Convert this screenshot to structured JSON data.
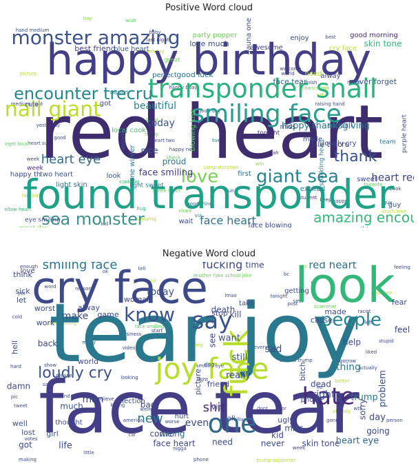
{
  "chart_data": [
    {
      "type": "wordcloud",
      "title": "Positive Word cloud",
      "words": [
        {
          "text": "red heart",
          "weight": 100,
          "color": "#3d2c6e"
        },
        {
          "text": "happy birthday",
          "weight": 78,
          "color": "#433e85"
        },
        {
          "text": "found transponder",
          "weight": 74,
          "color": "#1fa187"
        },
        {
          "text": "transponder snail",
          "weight": 46,
          "color": "#2db27d"
        },
        {
          "text": "smiling face",
          "weight": 44,
          "color": "#2a9d8f"
        },
        {
          "text": "snail giant",
          "weight": 33,
          "color": "#b8de29"
        },
        {
          "text": "monster amazing",
          "weight": 32,
          "color": "#3b528b"
        },
        {
          "text": "encounter trecru",
          "weight": 28,
          "color": "#23888e"
        },
        {
          "text": "love",
          "weight": 28,
          "color": "#7ad151"
        },
        {
          "text": "giant sea",
          "weight": 28,
          "color": "#25858e"
        },
        {
          "text": "sea monster",
          "weight": 24,
          "color": "#3e8f8b"
        },
        {
          "text": "thank",
          "weight": 22,
          "color": "#3a528b"
        },
        {
          "text": "amazing encounter",
          "weight": 21,
          "color": "#35b779"
        },
        {
          "text": "heart eye",
          "weight": 18,
          "color": "#31688e"
        },
        {
          "text": "face heart",
          "weight": 16,
          "color": "#2c728e"
        },
        {
          "text": "heart red",
          "weight": 14,
          "color": "#404688"
        },
        {
          "text": "today",
          "weight": 13,
          "color": "#3b528b"
        },
        {
          "text": "happy thanksgiving",
          "weight": 12,
          "color": "#2a788e"
        },
        {
          "text": "face smiling",
          "weight": 11,
          "color": "#443a83"
        },
        {
          "text": "good morning",
          "weight": 10,
          "color": "#482878"
        },
        {
          "text": "skin tone",
          "weight": 10,
          "color": "#35b779"
        },
        {
          "text": "party popper",
          "weight": 9,
          "color": "#6ece58"
        },
        {
          "text": "love much",
          "weight": 9,
          "color": "#3e4989"
        },
        {
          "text": "best friend",
          "weight": 9,
          "color": "#414487"
        },
        {
          "text": "good luck",
          "weight": 9,
          "color": "#2a788e"
        },
        {
          "text": "face tear",
          "weight": 9,
          "color": "#31688e"
        },
        {
          "text": "never forget",
          "weight": 9,
          "color": "#38588c"
        },
        {
          "text": "beautiful",
          "weight": 9,
          "color": "#26828e"
        },
        {
          "text": "sweet",
          "weight": 8,
          "color": "#3e4a89"
        },
        {
          "text": "sail trecru",
          "weight": 8,
          "color": "#20928c"
        },
        {
          "text": "growing heart",
          "weight": 8,
          "color": "#2d708e"
        },
        {
          "text": "face blowing",
          "weight": 8,
          "color": "#3f4788"
        },
        {
          "text": "winter isle",
          "weight": 8,
          "color": "#2c728e"
        },
        {
          "text": "snail killer killer rabbit",
          "weight": 7,
          "color": "#a0da39"
        },
        {
          "text": "great day",
          "weight": 7,
          "color": "#7ad151"
        },
        {
          "text": "eye smiling",
          "weight": 7,
          "color": "#3b528b"
        },
        {
          "text": "light skin",
          "weight": 7,
          "color": "#2f6c8e"
        },
        {
          "text": "blowing kiss",
          "weight": 7,
          "color": "#5ec962"
        },
        {
          "text": "local cook",
          "weight": 7,
          "color": "#4ac16d"
        },
        {
          "text": "set sail",
          "weight": 7,
          "color": "#31688e"
        },
        {
          "text": "loudly cry",
          "weight": 7,
          "color": "#3e4989"
        },
        {
          "text": "made",
          "weight": 7,
          "color": "#3e4989"
        },
        {
          "text": "excited",
          "weight": 7,
          "color": "#2a788e"
        },
        {
          "text": "enjoy",
          "weight": 7,
          "color": "#3e4989"
        },
        {
          "text": "awesome",
          "weight": 7,
          "color": "#414487"
        },
        {
          "text": "nice",
          "weight": 7,
          "color": "#3b528b"
        },
        {
          "text": "proud",
          "weight": 7,
          "color": "#2a788e"
        },
        {
          "text": "perfect",
          "weight": 7,
          "color": "#31688e"
        },
        {
          "text": "cute",
          "weight": 6,
          "color": "#3b528b"
        },
        {
          "text": "great",
          "weight": 6,
          "color": "#6ece58"
        },
        {
          "text": "blue heart",
          "weight": 6,
          "color": "#38588c"
        },
        {
          "text": "cry face",
          "weight": 6,
          "color": "#b5de2b"
        },
        {
          "text": "fauna one",
          "weight": 6,
          "color": "#3e4989"
        },
        {
          "text": "tonight",
          "weight": 6,
          "color": "#482878"
        },
        {
          "text": "sparkling heart",
          "weight": 6,
          "color": "#2a788e"
        },
        {
          "text": "isle trecru",
          "weight": 6,
          "color": "#433e85"
        },
        {
          "text": "two heart",
          "weight": 6,
          "color": "#3b528b"
        },
        {
          "text": "happy th",
          "weight": 6,
          "color": "#3e4989"
        },
        {
          "text": "first",
          "weight": 5,
          "color": "#31688e"
        },
        {
          "text": "wait",
          "weight": 5,
          "color": "#3e4989"
        },
        {
          "text": "got",
          "weight": 5,
          "color": "#3e4989"
        },
        {
          "text": "team",
          "weight": 5,
          "color": "#2c728e"
        },
        {
          "text": "guy",
          "weight": 5,
          "color": "#3b528b"
        },
        {
          "text": "look",
          "weight": 5,
          "color": "#3b528b"
        },
        {
          "text": "week",
          "weight": 5,
          "color": "#482878"
        },
        {
          "text": "miss",
          "weight": 5,
          "color": "#3e4989"
        },
        {
          "text": "need",
          "weight": 5,
          "color": "#b5de2b"
        },
        {
          "text": "alway",
          "weight": 5,
          "color": "#3e4989"
        },
        {
          "text": "one winter",
          "weight": 5,
          "color": "#2a788e"
        },
        {
          "text": "lovely",
          "weight": 5,
          "color": "#3b528b"
        },
        {
          "text": "light sweet",
          "weight": 5,
          "color": "#2a788e"
        },
        {
          "text": "purple heart",
          "weight": 5,
          "color": "#3e4989"
        }
      ]
    },
    {
      "type": "wordcloud",
      "title": "Negative Word cloud",
      "words": [
        {
          "text": "tear joy",
          "weight": 100,
          "color": "#2a788e"
        },
        {
          "text": "face tear",
          "weight": 84,
          "color": "#433e85"
        },
        {
          "text": "cry face",
          "weight": 62,
          "color": "#3e4989"
        },
        {
          "text": "look",
          "weight": 60,
          "color": "#35b779"
        },
        {
          "text": "joy face",
          "weight": 42,
          "color": "#b5de2b"
        },
        {
          "text": "fuck",
          "weight": 40,
          "color": "#b8de29"
        },
        {
          "text": "hate",
          "weight": 34,
          "color": "#482878"
        },
        {
          "text": "one",
          "weight": 34,
          "color": "#31688e"
        },
        {
          "text": "say",
          "weight": 30,
          "color": "#3b528b"
        },
        {
          "text": "know",
          "weight": 26,
          "color": "#3b528b"
        },
        {
          "text": "people",
          "weight": 24,
          "color": "#26828e"
        },
        {
          "text": "loudly cry",
          "weight": 20,
          "color": "#3b528b"
        },
        {
          "text": "smiling face",
          "weight": 18,
          "color": "#2a788e"
        },
        {
          "text": "fucking",
          "weight": 16,
          "color": "#3e4989"
        },
        {
          "text": "red heart",
          "weight": 16,
          "color": "#2d708e"
        },
        {
          "text": "shit",
          "weight": 16,
          "color": "#482878"
        },
        {
          "text": "new",
          "weight": 16,
          "color": "#2a788e"
        },
        {
          "text": "man",
          "weight": 15,
          "color": "#3e4989"
        },
        {
          "text": "today",
          "weight": 13,
          "color": "#3b528b"
        },
        {
          "text": "make",
          "weight": 13,
          "color": "#3e4989"
        },
        {
          "text": "death",
          "weight": 13,
          "color": "#3e4989"
        },
        {
          "text": "right",
          "weight": 13,
          "color": "#38588c"
        },
        {
          "text": "even",
          "weight": 13,
          "color": "#3e4989"
        },
        {
          "text": "sad",
          "weight": 13,
          "color": "#3e4989"
        },
        {
          "text": "see",
          "weight": 13,
          "color": "#3e4989"
        },
        {
          "text": "want",
          "weight": 12,
          "color": "#3b528b"
        },
        {
          "text": "really",
          "weight": 12,
          "color": "#3e4989"
        },
        {
          "text": "still",
          "weight": 12,
          "color": "#3b528b"
        },
        {
          "text": "time",
          "weight": 12,
          "color": "#3e4989"
        },
        {
          "text": "thing",
          "weight": 12,
          "color": "#2a788e"
        },
        {
          "text": "problem",
          "weight": 11,
          "color": "#3b528b"
        },
        {
          "text": "trump",
          "weight": 11,
          "color": "#2a788e"
        },
        {
          "text": "heart eye",
          "weight": 11,
          "color": "#31688e"
        },
        {
          "text": "face heart",
          "weight": 11,
          "color": "#3e4989"
        },
        {
          "text": "skin tone",
          "weight": 11,
          "color": "#3e4989"
        },
        {
          "text": "never",
          "weight": 11,
          "color": "#3e4989"
        },
        {
          "text": "need",
          "weight": 11,
          "color": "#3e4989"
        },
        {
          "text": "wrong",
          "weight": 11,
          "color": "#31688e"
        },
        {
          "text": "come",
          "weight": 11,
          "color": "#3e4989"
        },
        {
          "text": "life",
          "weight": 11,
          "color": "#3e4989"
        },
        {
          "text": "got",
          "weight": 11,
          "color": "#3e4989"
        },
        {
          "text": "kid",
          "weight": 11,
          "color": "#3e4989"
        },
        {
          "text": "miss",
          "weight": 11,
          "color": "#3b528b"
        },
        {
          "text": "day",
          "weight": 11,
          "color": "#3e4989"
        },
        {
          "text": "going",
          "weight": 11,
          "color": "#3e4989"
        },
        {
          "text": "sorry",
          "weight": 11,
          "color": "#3e4989"
        },
        {
          "text": "dead",
          "weight": 11,
          "color": "#3e4989"
        },
        {
          "text": "bad",
          "weight": 11,
          "color": "#3e4989"
        },
        {
          "text": "much",
          "weight": 11,
          "color": "#3b528b"
        },
        {
          "text": "damn",
          "weight": 11,
          "color": "#3e4989"
        },
        {
          "text": "lost",
          "weight": 10,
          "color": "#3b528b"
        },
        {
          "text": "girl",
          "weight": 10,
          "color": "#3b528b"
        },
        {
          "text": "well",
          "weight": 10,
          "color": "#3b528b"
        },
        {
          "text": "ugly",
          "weight": 10,
          "color": "#3e4989"
        },
        {
          "text": "via",
          "weight": 10,
          "color": "#3e4989"
        },
        {
          "text": "feel",
          "weight": 10,
          "color": "#3e4989"
        },
        {
          "text": "help",
          "weight": 10,
          "color": "#3e4989"
        },
        {
          "text": "let",
          "weight": 10,
          "color": "#3e4989"
        },
        {
          "text": "think",
          "weight": 10,
          "color": "#3e4989"
        },
        {
          "text": "kill",
          "weight": 10,
          "color": "#3e4989"
        },
        {
          "text": "stop",
          "weight": 10,
          "color": "#3e4989"
        },
        {
          "text": "back",
          "weight": 9,
          "color": "#3e4989"
        },
        {
          "text": "work",
          "weight": 9,
          "color": "#3e4989"
        },
        {
          "text": "world",
          "weight": 9,
          "color": "#3e4989"
        },
        {
          "text": "friend",
          "weight": 9,
          "color": "#3e4989"
        },
        {
          "text": "bitch",
          "weight": 9,
          "color": "#3e4989"
        },
        {
          "text": "picture",
          "weight": 9,
          "color": "#3e4989"
        },
        {
          "text": "love",
          "weight": 9,
          "color": "#3e4989"
        },
        {
          "text": "alway",
          "weight": 9,
          "color": "#3e4989"
        },
        {
          "text": "woman",
          "weight": 9,
          "color": "#3e4989"
        },
        {
          "text": "sick",
          "weight": 9,
          "color": "#3e4989"
        },
        {
          "text": "hell",
          "weight": 9,
          "color": "#3e4989"
        },
        {
          "text": "made",
          "weight": 9,
          "color": "#3e4989"
        },
        {
          "text": "cause",
          "weight": 9,
          "color": "#3e4989"
        },
        {
          "text": "worst",
          "weight": 9,
          "color": "#3e4989"
        },
        {
          "text": "fear",
          "weight": 9,
          "color": "#3e4989"
        },
        {
          "text": "game",
          "weight": 9,
          "color": "#3e4989"
        },
        {
          "text": "getting",
          "weight": 9,
          "color": "#3e4989"
        },
        {
          "text": "take",
          "weight": 9,
          "color": "#3e4989"
        },
        {
          "text": "photo",
          "weight": 9,
          "color": "#3e4989"
        },
        {
          "text": "call",
          "weight": 9,
          "color": "#3e4989"
        },
        {
          "text": "hurt",
          "weight": 9,
          "color": "#3e4989"
        },
        {
          "text": "thought",
          "weight": 9,
          "color": "#3e4989"
        },
        {
          "text": "election",
          "weight": 9,
          "color": "#3e4989"
        },
        {
          "text": "dog",
          "weight": 8,
          "color": "#3e4989"
        }
      ]
    }
  ]
}
